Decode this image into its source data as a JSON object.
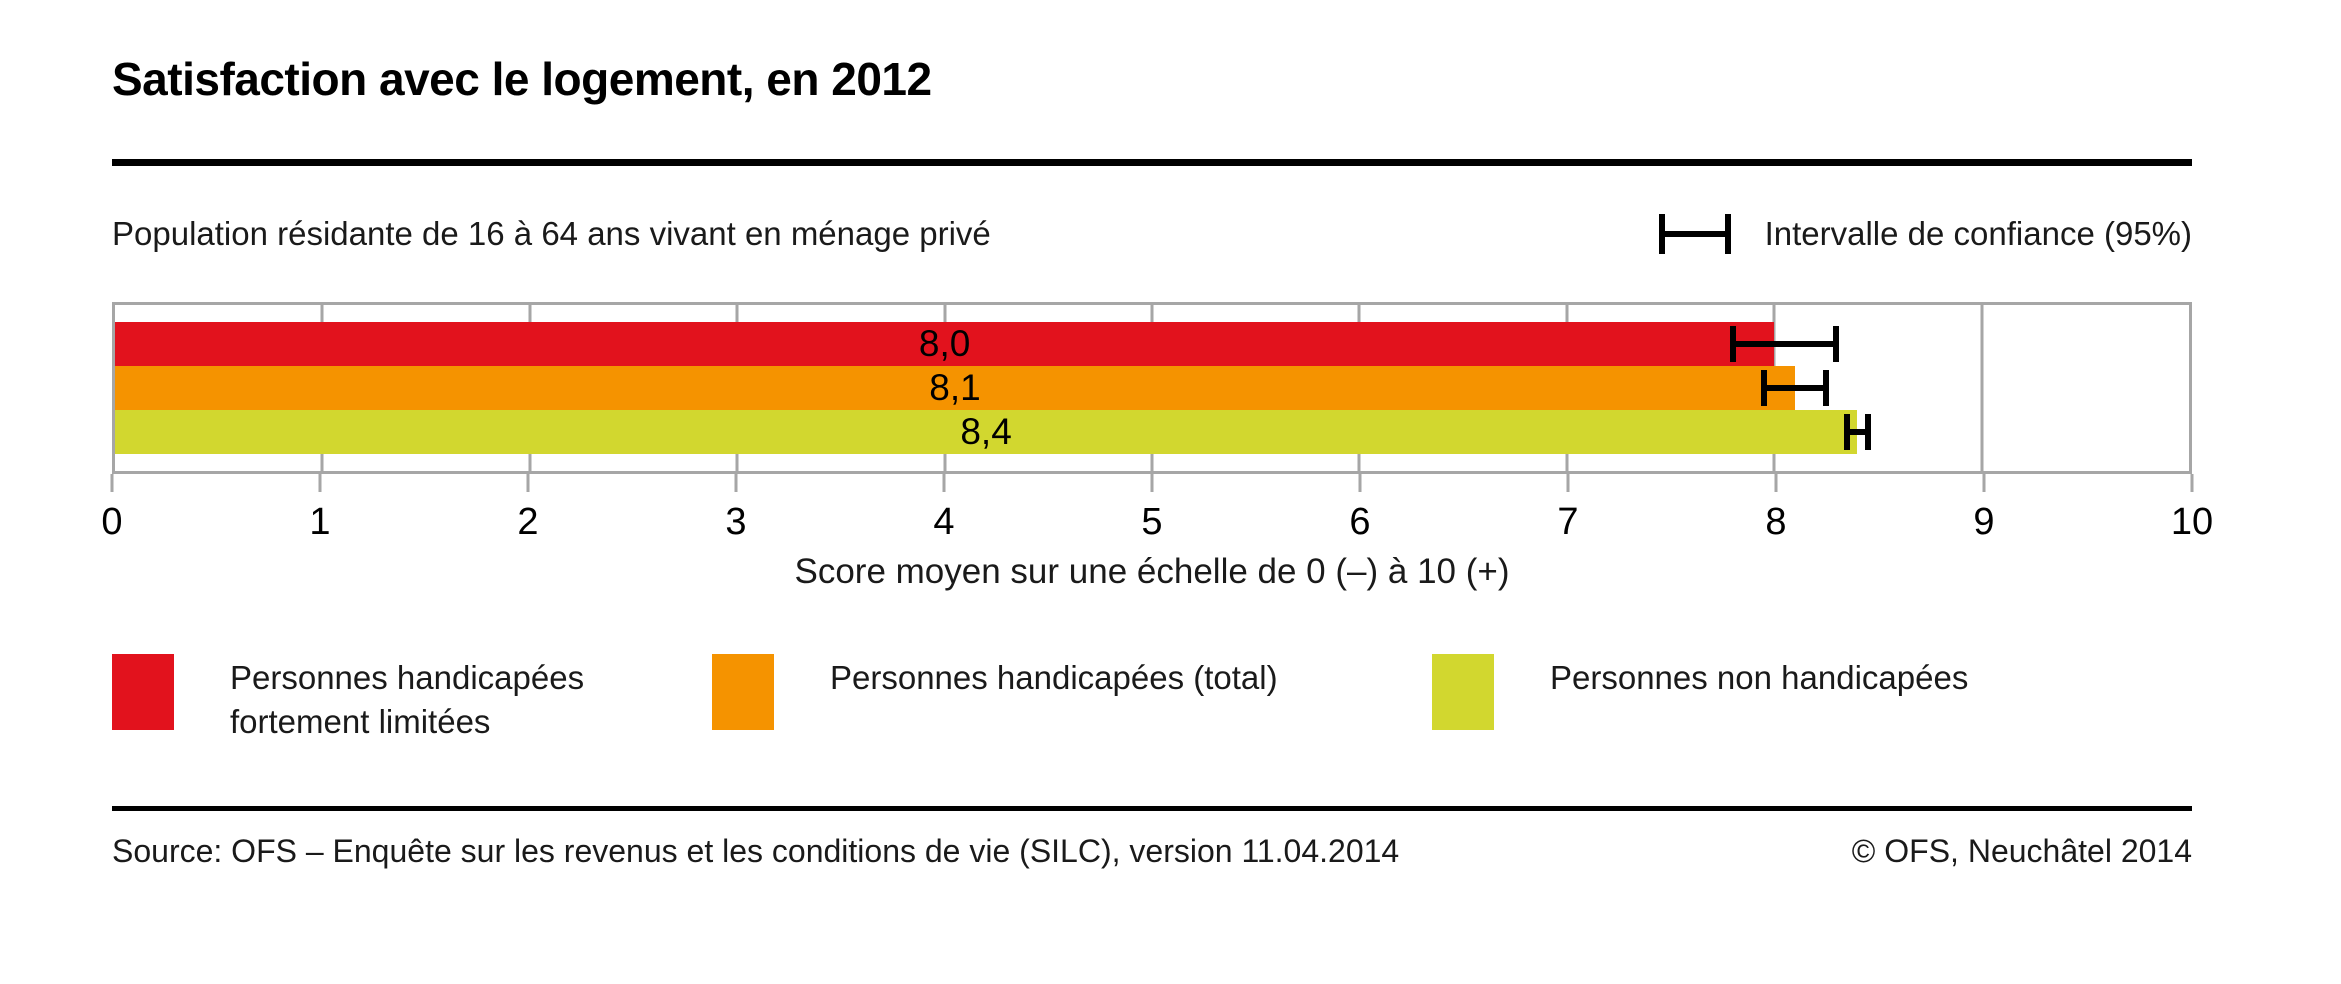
{
  "header": {
    "title": "Satisfaction avec le logement, en 2012",
    "subtitle": "Population résidante de 16 à 64 ans vivant en ménage privé"
  },
  "ci_legend": {
    "icon": "error-bar-icon",
    "label": "Intervalle de confiance (95%)"
  },
  "chart_data": {
    "type": "bar",
    "orientation": "horizontal",
    "title": "Satisfaction avec le logement, en 2012",
    "subtitle": "Population résidante de 16 à 64 ans vivant en ménage privé",
    "xlabel": "Score moyen sur une échelle de 0 (–) à 10 (+)",
    "xlim": [
      0,
      10
    ],
    "xticks": [
      0,
      1,
      2,
      3,
      4,
      5,
      6,
      7,
      8,
      9,
      10
    ],
    "grid": true,
    "legend_position": "bottom",
    "series": [
      {
        "name": "Personnes handicapées fortement limitées",
        "value": 8.0,
        "value_label": "8,0",
        "ci": [
          7.8,
          8.3
        ],
        "color": "#e2121d"
      },
      {
        "name": "Personnes handicapées (total)",
        "value": 8.1,
        "value_label": "8,1",
        "ci": [
          7.95,
          8.25
        ],
        "color": "#f59300"
      },
      {
        "name": "Personnes non handicapées",
        "value": 8.4,
        "value_label": "8,4",
        "ci": [
          8.35,
          8.45
        ],
        "color": "#d2d72f"
      }
    ]
  },
  "legend": {
    "items": [
      {
        "color": "#e2121d",
        "label": "Personnes handicapées fortement limitées",
        "label_lines": [
          "Personnes handicapées",
          "fortement limitées"
        ]
      },
      {
        "color": "#f59300",
        "label": "Personnes handicapées (total)",
        "label_lines": [
          "Personnes handicapées (total)"
        ]
      },
      {
        "color": "#d2d72f",
        "label": "Personnes non handicapées",
        "label_lines": [
          "Personnes non handicapées"
        ]
      }
    ]
  },
  "footer": {
    "source": "Source: OFS – Enquête sur les revenus et les conditions de vie (SILC), version 11.04.2014",
    "copyright": "© OFS, Neuchâtel 2014"
  },
  "colors": {
    "grid": "#a6a6a6",
    "rule": "#000000",
    "error_bar": "#000000",
    "background": "#ffffff"
  }
}
